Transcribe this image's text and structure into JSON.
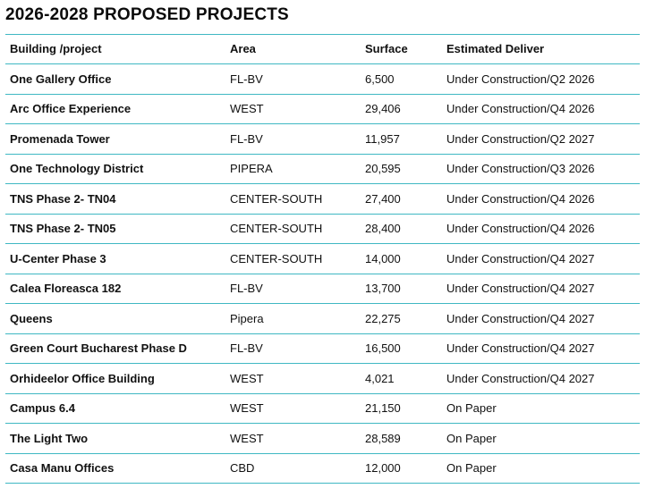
{
  "title": "2026-2028 PROPOSED PROJECTS",
  "accent_color": "#3fb8c3",
  "table": {
    "headers": [
      "Building /project",
      "Area",
      "Surface",
      "Estimated Deliver"
    ],
    "rows": [
      [
        "One Gallery Office",
        "FL-BV",
        "6,500",
        "Under Construction/Q2 2026"
      ],
      [
        "Arc Office Experience",
        "WEST",
        "29,406",
        "Under Construction/Q4 2026"
      ],
      [
        "Promenada Tower",
        "FL-BV",
        "11,957",
        "Under Construction/Q2 2027"
      ],
      [
        "One Technology District",
        "PIPERA",
        "20,595",
        "Under Construction/Q3 2026"
      ],
      [
        "TNS Phase 2- TN04",
        "CENTER-SOUTH",
        "27,400",
        "Under Construction/Q4 2026"
      ],
      [
        "TNS Phase 2- TN05",
        "CENTER-SOUTH",
        "28,400",
        "Under Construction/Q4 2026"
      ],
      [
        "U-Center Phase 3",
        "CENTER-SOUTH",
        "14,000",
        "Under Construction/Q4 2027"
      ],
      [
        "Calea Floreasca 182",
        "FL-BV",
        "13,700",
        "Under Construction/Q4 2027"
      ],
      [
        "Queens",
        "Pipera",
        "22,275",
        "Under Construction/Q4 2027"
      ],
      [
        "Green Court Bucharest Phase D",
        "FL-BV",
        "16,500",
        "Under Construction/Q4 2027"
      ],
      [
        "Orhideelor Office Building",
        "WEST",
        "4,021",
        "Under Construction/Q4 2027"
      ],
      [
        "Campus 6.4",
        "WEST",
        "21,150",
        "On Paper"
      ],
      [
        "The Light Two",
        "WEST",
        "28,589",
        "On Paper"
      ],
      [
        "Casa Manu Offices",
        "CBD",
        "12,000",
        "On Paper"
      ]
    ]
  }
}
